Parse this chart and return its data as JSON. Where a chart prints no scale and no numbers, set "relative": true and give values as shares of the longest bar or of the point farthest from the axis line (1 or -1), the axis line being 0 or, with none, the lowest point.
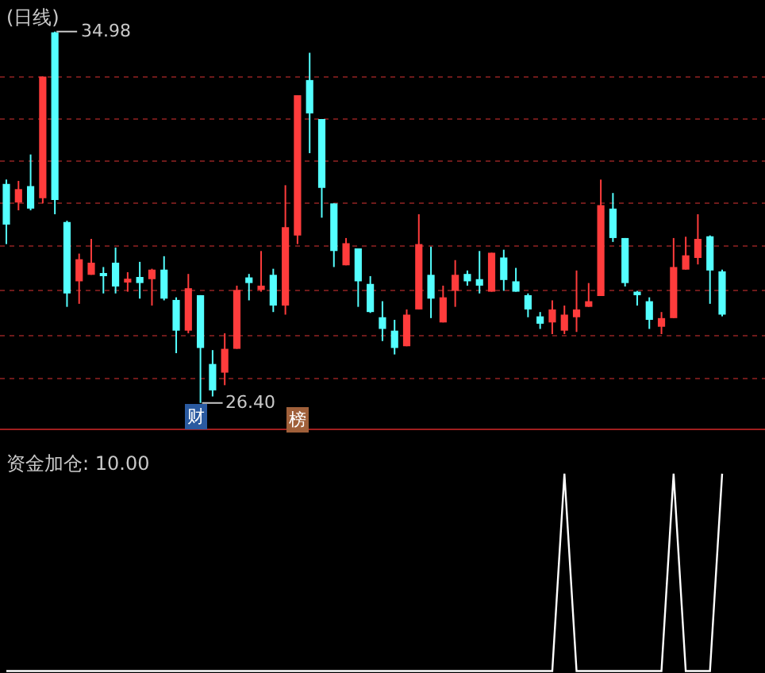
{
  "chart_data": [
    {
      "type": "candlestick",
      "title": "(日线)",
      "categories": [
        null,
        null,
        null,
        null,
        null,
        null,
        null,
        null,
        null,
        null,
        null,
        null,
        null,
        null,
        null,
        null,
        null,
        null,
        null,
        null,
        null,
        null,
        null,
        null,
        null,
        null,
        null,
        null,
        null,
        null,
        null,
        null,
        null,
        null,
        null,
        null,
        null,
        null,
        null,
        null,
        null,
        null,
        null,
        null,
        null,
        null,
        null,
        null,
        null,
        null,
        null,
        null,
        null,
        null,
        null,
        null,
        null,
        null,
        null,
        null
      ],
      "ohlc": [
        [
          31.46,
          31.56,
          30.07,
          30.52
        ],
        [
          31.03,
          31.53,
          30.85,
          31.34
        ],
        [
          31.41,
          32.14,
          30.85,
          30.89
        ],
        [
          31.13,
          33.94,
          31.01,
          33.94
        ],
        [
          34.96,
          34.98,
          30.76,
          31.09
        ],
        [
          30.58,
          30.61,
          28.62,
          28.93
        ],
        [
          29.21,
          29.85,
          28.69,
          29.72
        ],
        [
          29.36,
          30.19,
          29.36,
          29.64
        ],
        [
          29.39,
          29.54,
          28.93,
          29.35
        ],
        [
          29.64,
          29.99,
          28.93,
          29.09
        ],
        [
          29.21,
          29.42,
          28.97,
          29.27
        ],
        [
          29.31,
          29.66,
          28.81,
          29.17
        ],
        [
          29.26,
          29.5,
          28.65,
          29.48
        ],
        [
          29.48,
          29.79,
          28.77,
          28.81
        ],
        [
          28.78,
          28.84,
          27.55,
          28.07
        ],
        [
          28.07,
          29.38,
          28.01,
          29.05
        ],
        [
          28.89,
          28.89,
          26.4,
          27.67
        ],
        [
          27.3,
          27.62,
          26.55,
          26.69
        ],
        [
          27.1,
          28.01,
          26.81,
          27.65
        ],
        [
          27.65,
          29.11,
          27.65,
          29.01
        ],
        [
          29.3,
          29.38,
          28.77,
          29.17
        ],
        [
          29.01,
          29.91,
          28.97,
          29.11
        ],
        [
          29.36,
          29.5,
          28.5,
          28.65
        ],
        [
          28.65,
          31.43,
          28.44,
          30.46
        ],
        [
          30.27,
          33.51,
          30.07,
          33.51
        ],
        [
          33.86,
          34.49,
          32.17,
          33.09
        ],
        [
          32.96,
          32.96,
          30.68,
          31.37
        ],
        [
          31.01,
          31.01,
          29.54,
          29.91
        ],
        [
          29.58,
          30.21,
          29.58,
          30.09
        ],
        [
          29.97,
          29.97,
          28.62,
          29.21
        ],
        [
          29.15,
          29.33,
          28.48,
          28.5
        ],
        [
          28.38,
          28.75,
          27.83,
          28.11
        ],
        [
          28.07,
          28.32,
          27.52,
          27.67
        ],
        [
          27.71,
          28.56,
          27.71,
          28.44
        ],
        [
          28.56,
          30.76,
          28.56,
          30.07
        ],
        [
          29.36,
          30.01,
          28.36,
          28.81
        ],
        [
          28.26,
          29.11,
          28.26,
          28.84
        ],
        [
          28.99,
          29.7,
          28.62,
          29.36
        ],
        [
          29.38,
          29.46,
          29.11,
          29.21
        ],
        [
          29.26,
          29.91,
          28.93,
          29.11
        ],
        [
          28.97,
          29.87,
          28.97,
          29.87
        ],
        [
          29.76,
          29.94,
          28.99,
          29.24
        ],
        [
          29.21,
          29.52,
          28.97,
          28.97
        ],
        [
          28.89,
          28.93,
          28.38,
          28.56
        ],
        [
          28.4,
          28.5,
          28.11,
          28.23
        ],
        [
          28.26,
          28.77,
          27.99,
          28.56
        ],
        [
          28.07,
          28.65,
          27.99,
          28.44
        ],
        [
          28.38,
          29.46,
          28.04,
          28.56
        ],
        [
          28.62,
          29.17,
          28.62,
          28.75
        ],
        [
          28.87,
          31.56,
          28.87,
          30.97
        ],
        [
          30.89,
          31.25,
          30.12,
          30.21
        ],
        [
          30.21,
          30.21,
          29.09,
          29.17
        ],
        [
          28.97,
          28.99,
          28.65,
          28.92
        ],
        [
          28.75,
          28.84,
          28.11,
          28.32
        ],
        [
          28.16,
          28.5,
          27.99,
          28.36
        ],
        [
          28.36,
          30.21,
          28.36,
          29.54
        ],
        [
          29.48,
          30.24,
          29.48,
          29.81
        ],
        [
          29.75,
          30.76,
          29.6,
          30.19
        ],
        [
          30.25,
          30.27,
          28.69,
          29.46
        ],
        [
          29.44,
          29.48,
          28.4,
          28.44
        ]
      ],
      "colors": [
        "#54ffff",
        "#ff3c3c",
        "#54ffff",
        "#ff3c3c",
        "#54ffff",
        "#54ffff",
        "#ff3c3c",
        "#ff3c3c",
        "#54ffff",
        "#54ffff",
        "#ff3c3c",
        "#54ffff",
        "#ff3c3c",
        "#54ffff",
        "#54ffff",
        "#ff3c3c",
        "#54ffff",
        "#54ffff",
        "#ff3c3c",
        "#ff3c3c",
        "#54ffff",
        "#ff3c3c",
        "#54ffff",
        "#ff3c3c",
        "#ff3c3c",
        "#54ffff",
        "#54ffff",
        "#54ffff",
        "#ff3c3c",
        "#54ffff",
        "#54ffff",
        "#54ffff",
        "#54ffff",
        "#ff3c3c",
        "#ff3c3c",
        "#54ffff",
        "#ff3c3c",
        "#ff3c3c",
        "#54ffff",
        "#54ffff",
        "#ff3c3c",
        "#54ffff",
        "#54ffff",
        "#54ffff",
        "#54ffff",
        "#ff3c3c",
        "#ff3c3c",
        "#ff3c3c",
        "#ff3c3c",
        "#ff3c3c",
        "#54ffff",
        "#54ffff",
        "#54ffff",
        "#54ffff",
        "#ff3c3c",
        "#ff3c3c",
        "#ff3c3c",
        "#ff3c3c",
        "#54ffff",
        "#54ffff"
      ],
      "annotations": [
        "34.98",
        "26.40",
        "财",
        "榜"
      ],
      "grid": "y",
      "yticks": [
        {
          "value": 33.94,
          "label": null
        },
        {
          "value": 32.96,
          "label": null
        },
        {
          "value": 31.99,
          "label": null
        },
        {
          "value": 31.01,
          "label": null
        },
        {
          "value": 30.03,
          "label": null
        },
        {
          "value": 28.99,
          "label": null
        },
        {
          "value": 27.95,
          "label": null
        },
        {
          "value": 26.97,
          "label": null
        }
      ]
    },
    {
      "type": "line",
      "title": "资金加仓: 10.00",
      "relative": true,
      "categories": [
        null,
        null,
        null,
        null,
        null,
        null,
        null,
        null,
        null,
        null,
        null,
        null,
        null,
        null,
        null,
        null,
        null,
        null,
        null,
        null,
        null,
        null,
        null,
        null,
        null,
        null,
        null,
        null,
        null,
        null,
        null,
        null,
        null,
        null,
        null,
        null,
        null,
        null,
        null,
        null,
        null,
        null,
        null,
        null,
        null,
        null,
        null,
        null,
        null,
        null,
        null,
        null,
        null,
        null,
        null,
        null,
        null,
        null,
        null,
        null
      ],
      "series": [
        {
          "color": "#ffffff",
          "values": [
            0,
            0,
            0,
            0,
            0,
            0,
            0,
            0,
            0,
            0,
            0,
            0,
            0,
            0,
            0,
            0,
            0,
            0,
            0,
            0,
            0,
            0,
            0,
            0,
            0,
            0,
            0,
            0,
            0,
            0,
            0,
            0,
            0,
            0,
            0,
            0,
            0,
            0,
            0,
            0,
            0,
            0,
            0,
            0,
            0,
            0,
            1,
            0,
            0,
            0,
            0,
            0,
            0,
            0,
            0,
            1,
            0,
            0,
            0,
            1
          ]
        }
      ]
    }
  ]
}
